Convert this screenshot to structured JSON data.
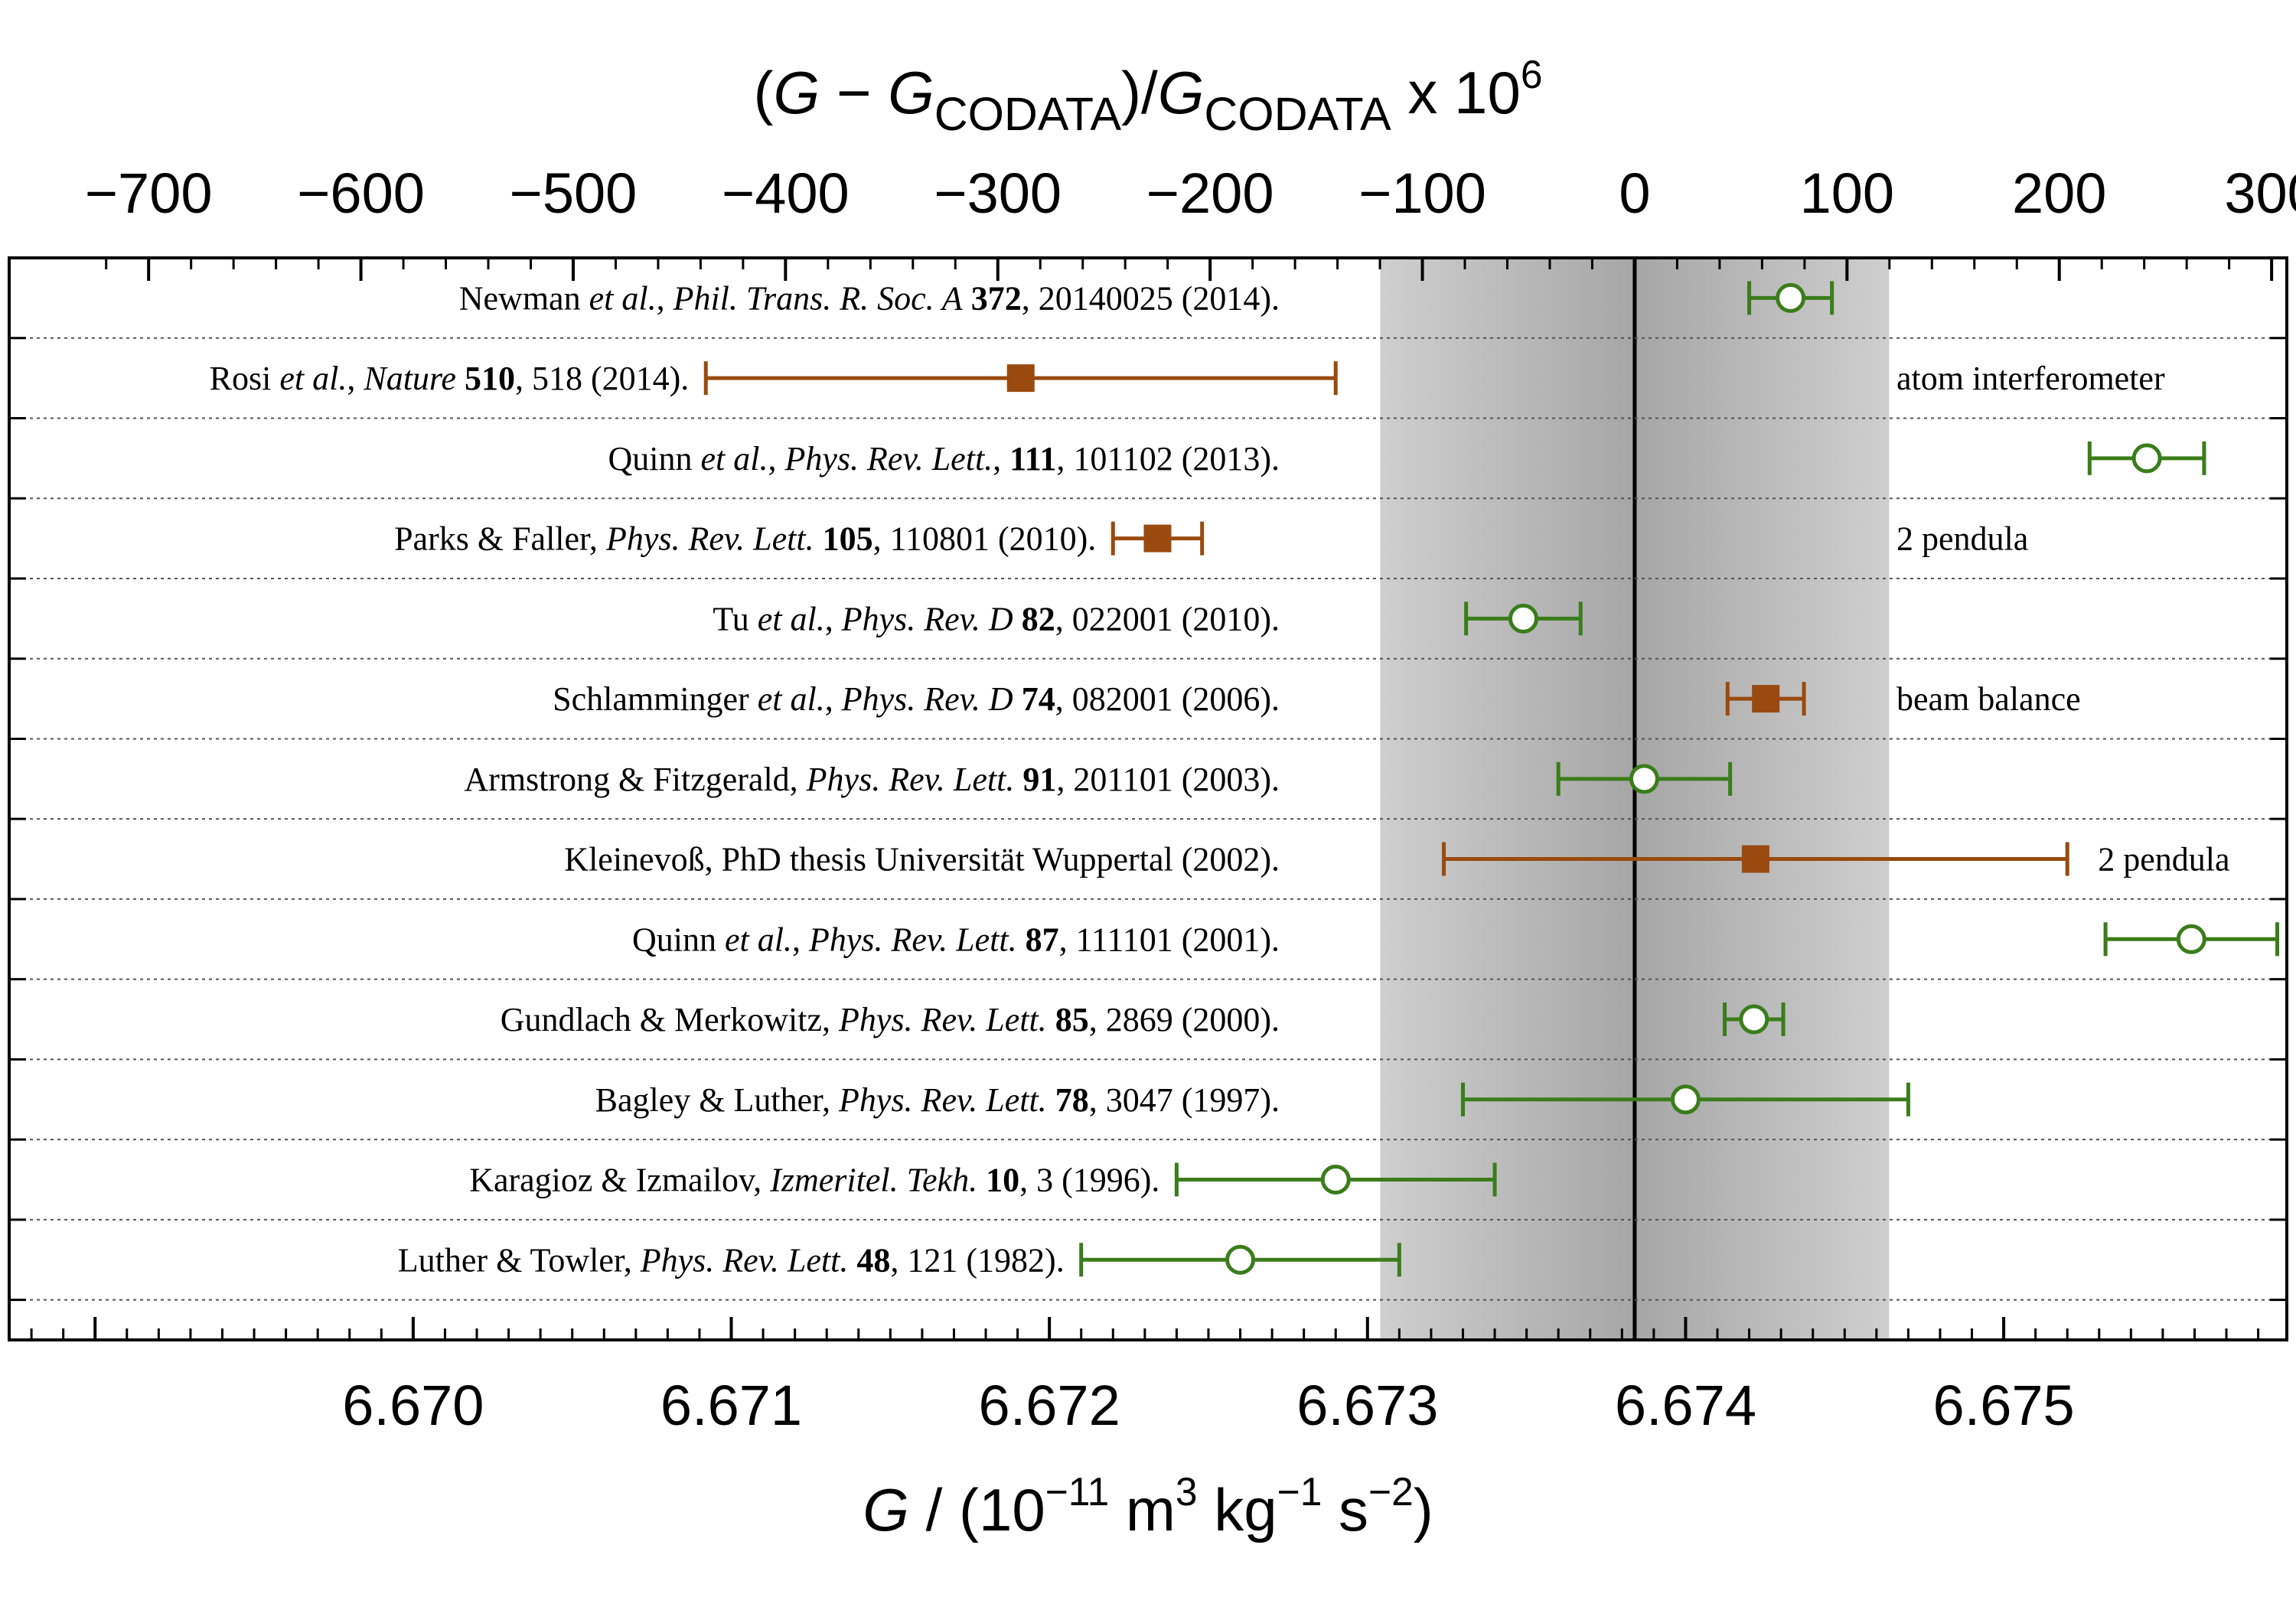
{
  "chart_data": {
    "type": "scatter",
    "title": "",
    "bottom_axis": {
      "label_parts": [
        {
          "t": "G",
          "style": "italic"
        },
        {
          "t": " / (10"
        },
        {
          "t": "−11",
          "sup": true
        },
        {
          "t": " m"
        },
        {
          "t": "3",
          "sup": true
        },
        {
          "t": " kg"
        },
        {
          "t": "−1",
          "sup": true
        },
        {
          "t": " s"
        },
        {
          "t": "−2",
          "sup": true
        },
        {
          "t": ")"
        }
      ],
      "xlim": [
        6.66873,
        6.67589
      ],
      "major_ticks": [
        6.67,
        6.671,
        6.672,
        6.673,
        6.674,
        6.675
      ],
      "tick_labels": [
        "6.670",
        "6.671",
        "6.672",
        "6.673",
        "6.674",
        "6.675"
      ],
      "minor_step": 0.0001
    },
    "top_axis": {
      "label_parts": [
        {
          "t": "("
        },
        {
          "t": "G",
          "style": "italic"
        },
        {
          "t": " − "
        },
        {
          "t": "G",
          "style": "italic"
        },
        {
          "t": "CODATA",
          "sub": true
        },
        {
          "t": ")/"
        },
        {
          "t": "G",
          "style": "italic"
        },
        {
          "t": "CODATA",
          "sub": true
        },
        {
          "t": " x 10"
        },
        {
          "t": "6",
          "sup": true
        }
      ],
      "major_ticks": [
        -700,
        -600,
        -500,
        -400,
        -300,
        -200,
        -100,
        0,
        100,
        200,
        300
      ],
      "tick_labels": [
        "−700",
        "−600",
        "−500",
        "−400",
        "−300",
        "−200",
        "−100",
        "0",
        "100",
        "200",
        "300"
      ],
      "minor_step": 20
    },
    "codata_value": 6.67384,
    "codata_band": [
      6.67304,
      6.67464
    ],
    "codata_inner_band": [
      6.67344,
      6.67424
    ],
    "series": [
      {
        "name": "beam balance / 2 pendula / atom interferometer",
        "marker": "filled-square",
        "color": "#9a4a0f"
      },
      {
        "name": "",
        "marker": "open-circle",
        "color": "#3a7d1a"
      }
    ],
    "points": [
      {
        "series": 1,
        "x": 6.67433,
        "xerr_low": 0.00013,
        "xerr_high": 0.00013,
        "ref": [
          {
            "t": "Newman "
          },
          {
            "t": "et al.",
            "i": true
          },
          {
            "t": ", "
          },
          {
            "t": "Phil. Trans. R. Soc. A",
            "i": true
          },
          {
            "t": " "
          },
          {
            "t": "372",
            "b": true
          },
          {
            "t": ", 20140025 (2014)."
          }
        ],
        "note": ""
      },
      {
        "series": 0,
        "x": 6.67191,
        "xerr_low": 0.00099,
        "xerr_high": 0.00099,
        "ref": [
          {
            "t": "Rosi "
          },
          {
            "t": "et al.",
            "i": true
          },
          {
            "t": ", "
          },
          {
            "t": "Nature",
            "i": true
          },
          {
            "t": " "
          },
          {
            "t": "510",
            "b": true
          },
          {
            "t": ", 518 (2014)."
          }
        ],
        "note": "atom interferometer"
      },
      {
        "series": 1,
        "x": 6.67545,
        "xerr_low": 0.00018,
        "xerr_high": 0.00018,
        "ref": [
          {
            "t": "Quinn "
          },
          {
            "t": "et al.",
            "i": true
          },
          {
            "t": ", "
          },
          {
            "t": "Phys. Rev. Lett.",
            "i": true
          },
          {
            "t": ", "
          },
          {
            "t": "111",
            "b": true
          },
          {
            "t": ", 101102 (2013)."
          }
        ],
        "note": ""
      },
      {
        "series": 0,
        "x": 6.67234,
        "xerr_low": 0.00014,
        "xerr_high": 0.00014,
        "ref": [
          {
            "t": "Parks & Faller, "
          },
          {
            "t": "Phys. Rev. Lett.",
            "i": true
          },
          {
            "t": " "
          },
          {
            "t": "105",
            "b": true
          },
          {
            "t": ", 110801 (2010)."
          }
        ],
        "note": "2 pendula"
      },
      {
        "series": 1,
        "x": 6.67349,
        "xerr_low": 0.00018,
        "xerr_high": 0.00018,
        "ref": [
          {
            "t": "Tu "
          },
          {
            "t": "et al.",
            "i": true
          },
          {
            "t": ", "
          },
          {
            "t": "Phys. Rev. D",
            "i": true
          },
          {
            "t": " "
          },
          {
            "t": "82",
            "b": true
          },
          {
            "t": ", 022001 (2010)."
          }
        ],
        "note": ""
      },
      {
        "series": 0,
        "x": 6.674252,
        "xerr_low": 0.00012,
        "xerr_high": 0.00012,
        "ref": [
          {
            "t": "Schlamminger "
          },
          {
            "t": "et al.",
            "i": true
          },
          {
            "t": ", "
          },
          {
            "t": "Phys. Rev. D",
            "i": true
          },
          {
            "t": " "
          },
          {
            "t": "74",
            "b": true
          },
          {
            "t": ", 082001 (2006)."
          }
        ],
        "note": "beam balance"
      },
      {
        "series": 1,
        "x": 6.67387,
        "xerr_low": 0.00027,
        "xerr_high": 0.00027,
        "ref": [
          {
            "t": "Armstrong & Fitzgerald, "
          },
          {
            "t": "Phys. Rev. Lett.",
            "i": true
          },
          {
            "t": " "
          },
          {
            "t": "91",
            "b": true
          },
          {
            "t": ", 201101 (2003)."
          }
        ],
        "note": ""
      },
      {
        "series": 0,
        "x": 6.67422,
        "xerr_low": 0.00098,
        "xerr_high": 0.00098,
        "ref": [
          {
            "t": "Kleinevoß, PhD thesis Universität Wuppertal (2002)."
          }
        ],
        "note": "2 pendula"
      },
      {
        "series": 1,
        "x": 6.67559,
        "xerr_low": 0.00027,
        "xerr_high": 0.00027,
        "ref": [
          {
            "t": "Quinn "
          },
          {
            "t": "et al.",
            "i": true
          },
          {
            "t": ", "
          },
          {
            "t": "Phys. Rev. Lett.",
            "i": true
          },
          {
            "t": " "
          },
          {
            "t": "87",
            "b": true
          },
          {
            "t": ", 111101 (2001)."
          }
        ],
        "note": ""
      },
      {
        "series": 1,
        "x": 6.674215,
        "xerr_low": 9.2e-05,
        "xerr_high": 9.2e-05,
        "ref": [
          {
            "t": "Gundlach & Merkowitz, "
          },
          {
            "t": "Phys. Rev. Lett.",
            "i": true
          },
          {
            "t": " "
          },
          {
            "t": "85",
            "b": true
          },
          {
            "t": ", 2869 (2000)."
          }
        ],
        "note": ""
      },
      {
        "series": 1,
        "x": 6.674,
        "xerr_low": 0.0007,
        "xerr_high": 0.0007,
        "ref": [
          {
            "t": "Bagley & Luther, "
          },
          {
            "t": "Phys. Rev. Lett.",
            "i": true
          },
          {
            "t": " "
          },
          {
            "t": "78",
            "b": true
          },
          {
            "t": ", 3047 (1997)."
          }
        ],
        "note": ""
      },
      {
        "series": 1,
        "x": 6.6729,
        "xerr_low": 0.0005,
        "xerr_high": 0.0005,
        "ref": [
          {
            "t": "Karagioz & Izmailov, "
          },
          {
            "t": "Izmeritel. Tekh.",
            "i": true
          },
          {
            "t": " "
          },
          {
            "t": "10",
            "b": true
          },
          {
            "t": ", 3 (1996)."
          }
        ],
        "note": ""
      },
      {
        "series": 1,
        "x": 6.6726,
        "xerr_low": 0.0005,
        "xerr_high": 0.0005,
        "ref": [
          {
            "t": "Luther & Towler, "
          },
          {
            "t": "Phys. Rev. Lett.",
            "i": true
          },
          {
            "t": " "
          },
          {
            "t": "48",
            "b": true
          },
          {
            "t": ", 121 (1982)."
          }
        ],
        "note": ""
      }
    ],
    "grid": "horizontal dotted row separators",
    "legend": "none"
  }
}
